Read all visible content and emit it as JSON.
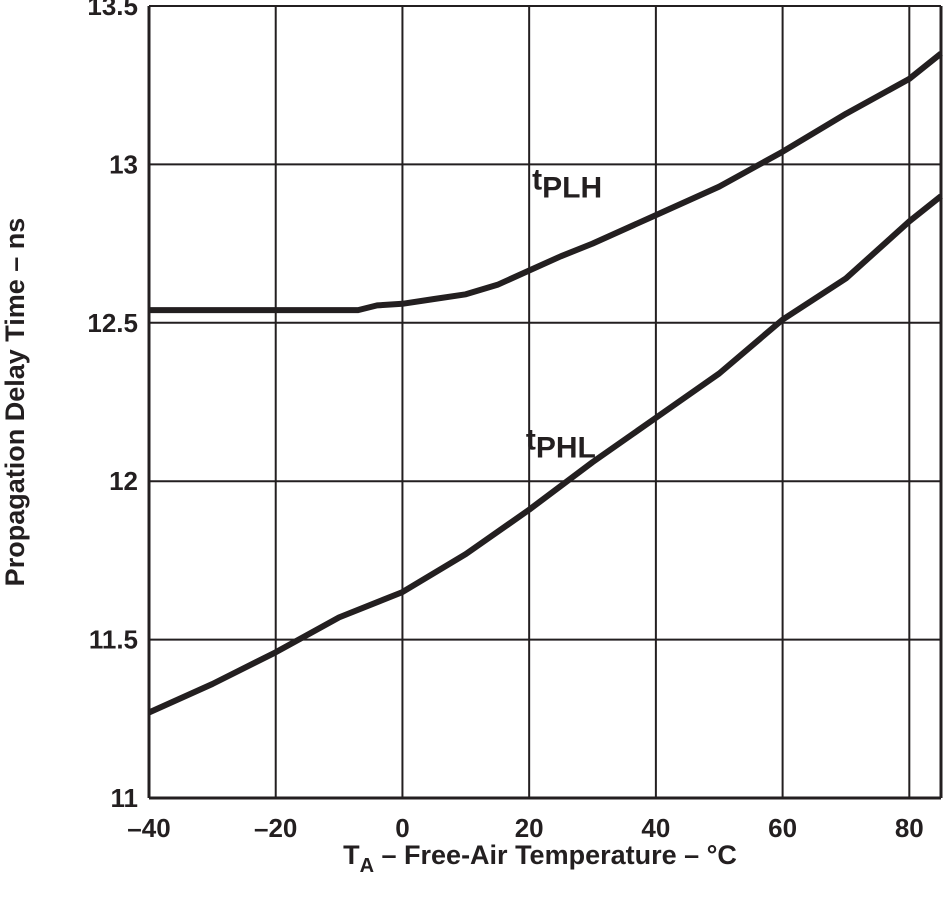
{
  "chart_data": {
    "type": "line",
    "title": "",
    "xlabel_main": "T",
    "xlabel_sub": "A",
    "xlabel_rest": " – Free-Air Temperature – °C",
    "ylabel": "Propagation Delay Time – ns",
    "xlim": [
      -40,
      85
    ],
    "ylim": [
      11,
      13.5
    ],
    "xticks": [
      -40,
      -20,
      0,
      20,
      40,
      60,
      80
    ],
    "xtick_labels": [
      "–40",
      "–20",
      "0",
      "20",
      "40",
      "60",
      "80"
    ],
    "yticks": [
      11,
      11.5,
      12,
      12.5,
      13,
      13.5
    ],
    "ytick_labels": [
      "11",
      "11.5",
      "12",
      "12.5",
      "13",
      "13.5"
    ],
    "grid": true,
    "line_color": "#231f20",
    "series": [
      {
        "name_main": "t",
        "name_sub": "PLH",
        "x": [
          -40,
          -30,
          -20,
          -10,
          -7,
          -4,
          0,
          5,
          10,
          15,
          20,
          25,
          30,
          40,
          50,
          60,
          70,
          80,
          85
        ],
        "y": [
          12.54,
          12.54,
          12.54,
          12.54,
          12.54,
          12.555,
          12.56,
          12.575,
          12.59,
          12.62,
          12.665,
          12.71,
          12.75,
          12.84,
          12.93,
          13.04,
          13.16,
          13.27,
          13.35
        ]
      },
      {
        "name_main": "t",
        "name_sub": "PHL",
        "x": [
          -40,
          -30,
          -20,
          -10,
          0,
          10,
          20,
          30,
          40,
          50,
          60,
          70,
          80,
          85
        ],
        "y": [
          11.27,
          11.36,
          11.46,
          11.57,
          11.65,
          11.77,
          11.91,
          12.06,
          12.2,
          12.34,
          12.51,
          12.64,
          12.82,
          12.9
        ]
      }
    ],
    "annotations": [
      {
        "series": 0,
        "x": 26,
        "y": 12.92
      },
      {
        "series": 1,
        "x": 25,
        "y": 12.1
      }
    ]
  }
}
